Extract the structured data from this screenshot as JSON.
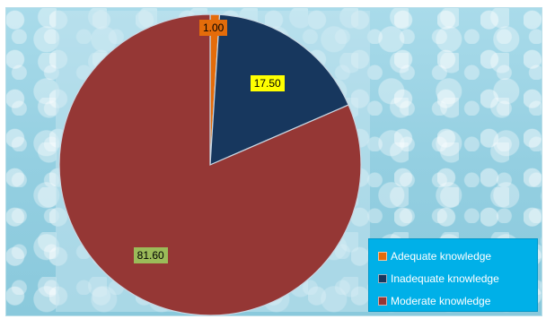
{
  "chart_data": {
    "type": "pie",
    "title": "",
    "slices": [
      {
        "name": "Adequate knowledge",
        "value": 1.0,
        "label": "1.00",
        "color": "#e46c0a",
        "label_bg": "#e46c0a"
      },
      {
        "name": "Inadequate knowledge",
        "value": 17.5,
        "label": "17.50",
        "color": "#17375e",
        "label_bg": "#ffff00"
      },
      {
        "name": "Moderate knowledge",
        "value": 81.6,
        "label": "81.60",
        "color": "#953735",
        "label_bg": "#9bbb59"
      }
    ],
    "legend_position": "bottom-right",
    "legend_color": "#00b0f0"
  }
}
